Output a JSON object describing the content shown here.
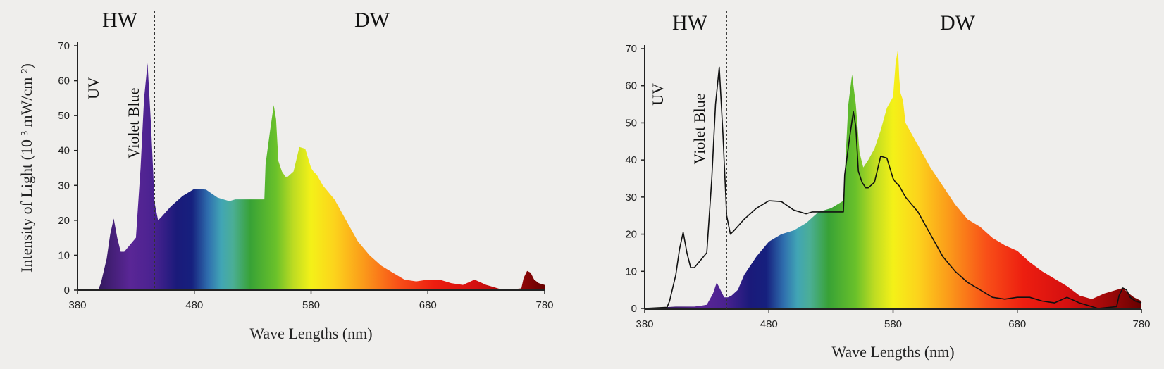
{
  "chart_data": [
    {
      "type": "area",
      "title": "",
      "xlabel": "Wave Lengths (nm)",
      "ylabel": "Intensity of Light (10 ³ mW/cm ²)",
      "xlim": [
        380,
        780
      ],
      "ylim": [
        0,
        70
      ],
      "x_ticks": [
        "380",
        "480",
        "580",
        "680",
        "780"
      ],
      "y_ticks": [
        "0",
        "10",
        "20",
        "30",
        "40",
        "50",
        "60",
        "70"
      ],
      "regions": [
        "HW",
        "DW"
      ],
      "region_divider_nm": 446,
      "band_labels": [
        "UV",
        "Violet Blue"
      ],
      "legend": "none",
      "grid": false,
      "series": [
        {
          "x": [
            380,
            398,
            400,
            405,
            408,
            411,
            414,
            417,
            420,
            425,
            430,
            434,
            437,
            440,
            443,
            446,
            449,
            452,
            460,
            470,
            480,
            490,
            500,
            510,
            515,
            520,
            525,
            530,
            535,
            540,
            541,
            545,
            548,
            550,
            552,
            555,
            558,
            560,
            565,
            570,
            575,
            580,
            582,
            585,
            590,
            600,
            610,
            620,
            630,
            640,
            650,
            660,
            670,
            680,
            690,
            700,
            710,
            720,
            730,
            735,
            740,
            745,
            760,
            762,
            765,
            768,
            771,
            775,
            780
          ],
          "y": [
            0,
            0.3,
            2,
            9,
            16,
            20.5,
            15,
            11,
            11,
            13,
            15,
            35,
            55,
            65,
            47,
            25,
            20,
            21,
            24,
            27,
            29,
            28.8,
            26.5,
            25.5,
            26,
            26,
            26,
            26,
            26,
            26,
            36,
            46,
            53,
            49,
            37,
            34,
            32.5,
            32.5,
            34,
            41,
            40.5,
            35,
            34,
            33,
            30,
            26,
            20,
            14,
            10,
            7,
            5,
            3,
            2.5,
            3,
            3,
            2,
            1.5,
            3,
            1.5,
            1,
            0.5,
            0,
            0.5,
            3.5,
            5.5,
            5,
            3,
            2,
            1.5
          ]
        }
      ]
    },
    {
      "type": "area",
      "title": "",
      "xlabel": "Wave Lengths (nm)",
      "ylabel": "",
      "xlim": [
        380,
        780
      ],
      "ylim": [
        0,
        70
      ],
      "x_ticks": [
        "380",
        "480",
        "580",
        "680",
        "780"
      ],
      "y_ticks": [
        "0",
        "10",
        "20",
        "30",
        "40",
        "50",
        "60",
        "70"
      ],
      "regions": [
        "HW",
        "DW"
      ],
      "region_divider_nm": 446,
      "band_labels": [
        "UV",
        "Violet Blue"
      ],
      "legend": "none",
      "grid": false,
      "series": [
        {
          "x": [
            380,
            405,
            410,
            415,
            420,
            425,
            430,
            435,
            438,
            441,
            444,
            447,
            450,
            455,
            460,
            470,
            480,
            490,
            500,
            510,
            520,
            530,
            540,
            544,
            547,
            550,
            553,
            556,
            560,
            565,
            570,
            575,
            580,
            582,
            584,
            585,
            586,
            588,
            590,
            600,
            610,
            620,
            630,
            640,
            650,
            660,
            670,
            680,
            690,
            700,
            710,
            720,
            730,
            740,
            750,
            760,
            765,
            770,
            774,
            780
          ],
          "y": [
            0,
            0.5,
            0.5,
            0.5,
            0.5,
            0.7,
            1,
            4,
            7,
            5,
            3,
            3,
            3.5,
            5,
            9,
            14,
            18,
            20,
            21,
            23,
            26,
            27,
            29,
            55,
            63,
            55,
            42,
            38,
            40,
            43,
            48,
            54,
            57,
            66,
            70,
            62,
            58,
            56,
            50,
            44,
            38,
            33,
            28,
            24,
            22,
            19,
            17,
            15.5,
            12.5,
            10,
            8,
            6,
            3.5,
            2.5,
            4,
            5,
            5.5,
            4,
            3,
            2
          ]
        },
        {
          "x": [
            380,
            398,
            400,
            405,
            408,
            411,
            414,
            417,
            420,
            425,
            430,
            434,
            437,
            440,
            443,
            446,
            449,
            452,
            460,
            470,
            480,
            490,
            500,
            510,
            515,
            520,
            525,
            530,
            535,
            540,
            541,
            545,
            548,
            550,
            552,
            555,
            558,
            560,
            565,
            570,
            575,
            580,
            582,
            585,
            590,
            600,
            610,
            620,
            630,
            640,
            650,
            660,
            670,
            680,
            690,
            700,
            710,
            720,
            730,
            735,
            740,
            745,
            760,
            762,
            765,
            768,
            771,
            775,
            780
          ],
          "y": [
            0,
            0.3,
            2,
            9,
            16,
            20.5,
            15,
            11,
            11,
            13,
            15,
            35,
            55,
            65,
            47,
            25,
            20,
            21,
            24,
            27,
            29,
            28.8,
            26.5,
            25.5,
            26,
            26,
            26,
            26,
            26,
            26,
            36,
            46,
            53,
            49,
            37,
            34,
            32.5,
            32.5,
            34,
            41,
            40.5,
            35,
            34,
            33,
            30,
            26,
            20,
            14,
            10,
            7,
            5,
            3,
            2.5,
            3,
            3,
            2,
            1.5,
            3,
            1.5,
            1,
            0.5,
            0,
            0.5,
            3.5,
            5.5,
            5,
            3,
            2,
            1.5
          ]
        }
      ]
    }
  ]
}
